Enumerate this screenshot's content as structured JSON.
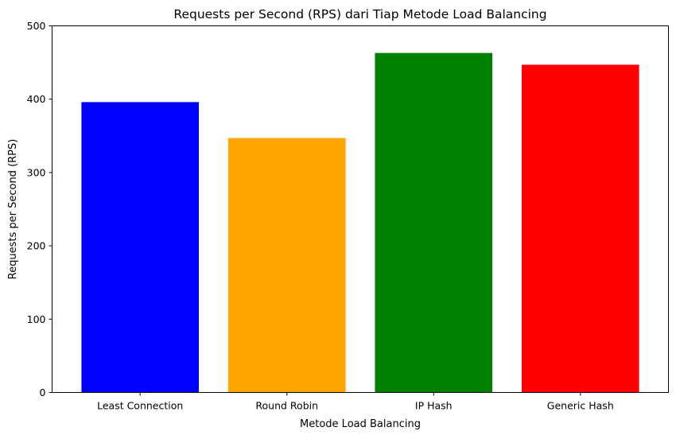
{
  "chart_data": {
    "type": "bar",
    "title": "Requests per Second (RPS) dari Tiap Metode Load Balancing",
    "xlabel": "Metode Load Balancing",
    "ylabel": "Requests per Second (RPS)",
    "categories": [
      "Least Connection",
      "Round Robin",
      "IP Hash",
      "Generic Hash"
    ],
    "values": [
      396,
      347,
      463,
      447
    ],
    "colors": [
      "#0000ff",
      "#ffa500",
      "#008000",
      "#ff0000"
    ],
    "ylim": [
      0,
      500
    ],
    "yticks": [
      0,
      100,
      200,
      300,
      400,
      500
    ],
    "grid": false,
    "legend": "none"
  }
}
